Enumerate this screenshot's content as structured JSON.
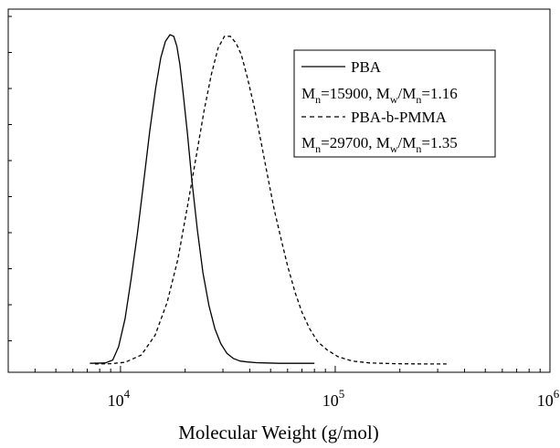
{
  "chart_data": {
    "type": "line",
    "xscale": "log",
    "xlim": [
      3000,
      1000000
    ],
    "ylim": [
      0,
      1.05
    ],
    "xlabel": "Molecular Weight (g/mol)",
    "ylabel": "",
    "grid": false,
    "legend_position": "top-right",
    "x_tick_labels": [
      {
        "value": 10000,
        "base": "10",
        "exp": "4"
      },
      {
        "value": 100000,
        "base": "10",
        "exp": "5"
      },
      {
        "value": 1000000,
        "base": "10",
        "exp": "6"
      }
    ],
    "series": [
      {
        "name": "PBA",
        "stats": {
          "mn_label": "M",
          "mn_sub": "n",
          "mn_value": "=15900, ",
          "mw_label": "M",
          "mw_sub": "w",
          "slash": "/",
          "mn2_label": "M",
          "mn2_sub": "n",
          "pdi": "=1.16"
        },
        "style": "solid",
        "color": "#000000",
        "x": [
          7200,
          8500,
          9200,
          9800,
          10500,
          11200,
          12000,
          12800,
          13700,
          14600,
          15400,
          16200,
          17000,
          17700,
          18300,
          18900,
          19600,
          20500,
          21500,
          22800,
          24200,
          25800,
          27500,
          29300,
          31300,
          33500,
          36000,
          39000,
          43000,
          48000,
          55000,
          65000,
          80000
        ],
        "y": [
          0.005,
          0.006,
          0.015,
          0.055,
          0.14,
          0.26,
          0.4,
          0.55,
          0.71,
          0.84,
          0.93,
          0.98,
          1.0,
          0.995,
          0.965,
          0.91,
          0.82,
          0.7,
          0.56,
          0.41,
          0.28,
          0.18,
          0.11,
          0.065,
          0.035,
          0.02,
          0.012,
          0.009,
          0.007,
          0.006,
          0.005,
          0.005,
          0.005
        ]
      },
      {
        "name": "PBA-b-PMMA",
        "stats": {
          "mn_label": "M",
          "mn_sub": "n",
          "mn_value": "=29700, ",
          "mw_label": "M",
          "mw_sub": "w",
          "slash": "/",
          "mn2_label": "M",
          "mn2_sub": "n",
          "pdi": "=1.35"
        },
        "style": "dashed",
        "color": "#000000",
        "x": [
          7600,
          9000,
          10500,
          12500,
          14500,
          16500,
          18500,
          20500,
          22500,
          24500,
          26500,
          28500,
          30500,
          32500,
          34500,
          36500,
          39000,
          42000,
          45000,
          48500,
          52000,
          56000,
          60000,
          65000,
          70000,
          76000,
          83000,
          92000,
          103000,
          120000,
          145000,
          190000,
          260000,
          330000
        ],
        "y": [
          0.003,
          0.004,
          0.008,
          0.03,
          0.09,
          0.19,
          0.32,
          0.48,
          0.63,
          0.77,
          0.88,
          0.96,
          0.995,
          0.995,
          0.975,
          0.94,
          0.87,
          0.78,
          0.68,
          0.57,
          0.47,
          0.38,
          0.3,
          0.22,
          0.16,
          0.11,
          0.07,
          0.045,
          0.025,
          0.012,
          0.006,
          0.004,
          0.003,
          0.003
        ]
      }
    ]
  }
}
